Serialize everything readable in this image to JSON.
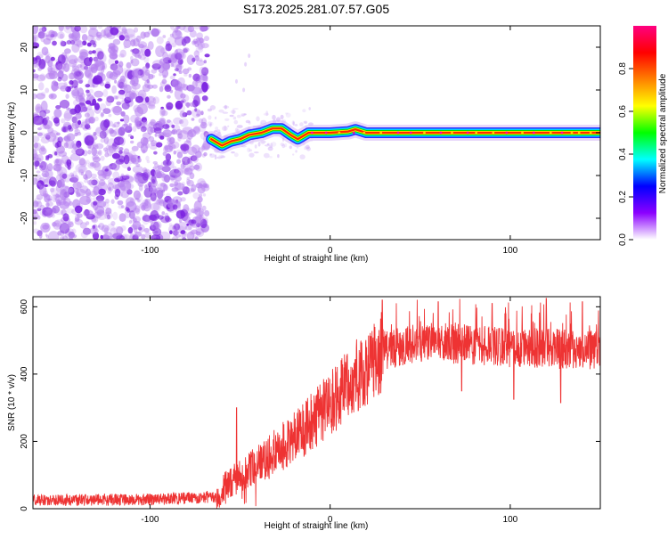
{
  "title": "S173.2025.281.07.57.G05",
  "chart_data": [
    {
      "type": "heatmap",
      "title": "S173.2025.281.07.57.G05",
      "xlabel": "Height of straight line (km)",
      "ylabel": "Frequency (Hz)",
      "xlim": [
        -165,
        150
      ],
      "ylim": [
        -25,
        25
      ],
      "x_ticks": [
        -100,
        0,
        100
      ],
      "x_tick_labels": [
        "-100",
        "0",
        "100"
      ],
      "y_ticks": [
        -20,
        -10,
        0,
        10,
        20
      ],
      "y_tick_labels": [
        "-20",
        "-10",
        "0",
        "10",
        "20"
      ],
      "colorbar": {
        "label": "Normalized spectral amplitude",
        "range": [
          0,
          1
        ],
        "ticks": [
          0.0,
          0.2,
          0.4,
          0.6,
          0.8
        ],
        "tick_labels": [
          "0.0",
          "0.2",
          "0.4",
          "0.6",
          "0.8"
        ],
        "colors": [
          "#ffffff",
          "#8b00ff",
          "#0000ff",
          "#00ffff",
          "#00ff00",
          "#ffff00",
          "#ff8000",
          "#ff0000",
          "#ff0080"
        ]
      },
      "noise_region_x": [
        -165,
        -68
      ],
      "transition_region_x": [
        -68,
        -10
      ],
      "track_points": [
        {
          "x": -66,
          "y": -1.5
        },
        {
          "x": -60,
          "y": -3.0
        },
        {
          "x": -55,
          "y": -2.0
        },
        {
          "x": -50,
          "y": -1.5
        },
        {
          "x": -45,
          "y": -0.5
        },
        {
          "x": -38,
          "y": 0.0
        },
        {
          "x": -32,
          "y": 1.0
        },
        {
          "x": -27,
          "y": 1.0
        },
        {
          "x": -22,
          "y": -0.5
        },
        {
          "x": -18,
          "y": -1.5
        },
        {
          "x": -12,
          "y": 0.0
        },
        {
          "x": 0,
          "y": 0.0
        },
        {
          "x": 10,
          "y": 0.3
        },
        {
          "x": 14,
          "y": 0.8
        },
        {
          "x": 20,
          "y": 0.0
        },
        {
          "x": 50,
          "y": 0.0
        },
        {
          "x": 100,
          "y": 0.0
        },
        {
          "x": 150,
          "y": 0.0
        }
      ]
    },
    {
      "type": "line",
      "xlabel": "Height of straight line (km)",
      "ylabel": "SNR (10 * v/v)",
      "xlim": [
        -165,
        150
      ],
      "ylim": [
        0,
        630
      ],
      "x_ticks": [
        -100,
        0,
        100
      ],
      "x_tick_labels": [
        "-100",
        "0",
        "100"
      ],
      "y_ticks": [
        0,
        200,
        400,
        600
      ],
      "y_tick_labels": [
        "0",
        "200",
        "400",
        "600"
      ],
      "series": [
        {
          "name": "SNR",
          "color": "#ee3333",
          "x": [
            -165,
            -140,
            -100,
            -75,
            -63,
            -58,
            -50,
            -40,
            -30,
            -20,
            -10,
            0,
            10,
            20,
            30,
            50,
            70,
            100,
            130,
            150
          ],
          "y": [
            20,
            20,
            22,
            27,
            30,
            70,
            95,
            130,
            170,
            210,
            260,
            310,
            370,
            420,
            470,
            495,
            490,
            480,
            475,
            470
          ]
        }
      ],
      "annotations": {
        "noise_amplitude_low": 12,
        "noise_amplitude_high": 45,
        "spikes": [
          {
            "x": -52,
            "y": 300
          },
          {
            "x": 29,
            "y": 620
          },
          {
            "x": 60,
            "y": 615
          },
          {
            "x": 90,
            "y": 610
          },
          {
            "x": 120,
            "y": 625
          },
          {
            "x": 140,
            "y": 615
          }
        ],
        "dips": [
          {
            "x": 73,
            "y": 350
          },
          {
            "x": 102,
            "y": 325
          },
          {
            "x": 128,
            "y": 315
          }
        ]
      }
    }
  ]
}
